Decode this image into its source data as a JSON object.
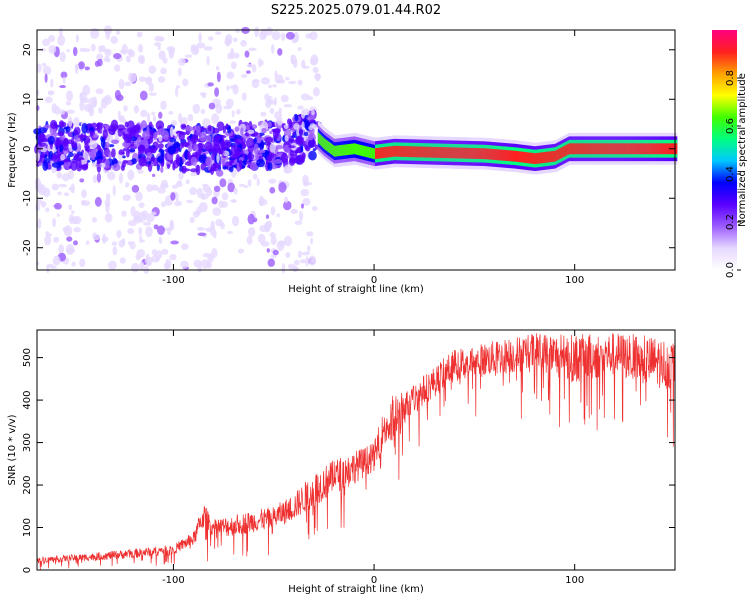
{
  "figure_title": "S225.2025.079.01.44.R02",
  "chart_data": [
    {
      "type": "heatmap",
      "xlabel": "Height of straight line (km)",
      "ylabel": "Frequency (Hz)",
      "xlim": [
        -168,
        150
      ],
      "ylim": [
        -24.5,
        24
      ],
      "xticks": [
        -100,
        0,
        100
      ],
      "yticks": [
        -20,
        -10,
        0,
        10,
        20
      ],
      "colorbar": {
        "label": "Normalized spectral amplitude",
        "range": [
          0,
          1
        ],
        "ticks": [
          0.0,
          0.2,
          0.4,
          0.6,
          0.8
        ],
        "tick_labels": [
          "0.0",
          "0.2",
          "0.4",
          "0.6",
          "0.8"
        ],
        "colormap": [
          "#ffffff",
          "#e6d8ff",
          "#9c5cff",
          "#5a00ff",
          "#0000ff",
          "#00c8ff",
          "#00ff80",
          "#40ff00",
          "#ffff00",
          "#ffa000",
          "#ff2020",
          "#ff0080"
        ]
      },
      "ridge_center_hz": [
        {
          "x": -168,
          "y": 0.5
        },
        {
          "x": -120,
          "y": 0.5
        },
        {
          "x": -80,
          "y": 0
        },
        {
          "x": -45,
          "y": 1
        },
        {
          "x": -30,
          "y": 3
        },
        {
          "x": -25,
          "y": 1
        },
        {
          "x": -20,
          "y": -0.5
        },
        {
          "x": -10,
          "y": 0
        },
        {
          "x": 0,
          "y": -1
        },
        {
          "x": 10,
          "y": -0.5
        },
        {
          "x": 55,
          "y": -1
        },
        {
          "x": 70,
          "y": -1.5
        },
        {
          "x": 80,
          "y": -2
        },
        {
          "x": 90,
          "y": -1.5
        },
        {
          "x": 97,
          "y": 0
        },
        {
          "x": 150,
          "y": 0
        }
      ]
    },
    {
      "type": "line",
      "xlabel": "Height of straight line (km)",
      "ylabel": "SNR (10 * v/v)",
      "xlim": [
        -168,
        150
      ],
      "ylim": [
        0,
        565
      ],
      "xticks": [
        -100,
        0,
        100
      ],
      "yticks": [
        0,
        100,
        200,
        300,
        400,
        500
      ],
      "color": "#ee3030",
      "envelope": [
        {
          "x": -168,
          "low": 0,
          "high": 30
        },
        {
          "x": -140,
          "low": 0,
          "high": 40
        },
        {
          "x": -120,
          "low": 0,
          "high": 50
        },
        {
          "x": -100,
          "low": 10,
          "high": 60
        },
        {
          "x": -90,
          "low": 15,
          "high": 90
        },
        {
          "x": -85,
          "low": 20,
          "high": 160
        },
        {
          "x": -80,
          "low": 15,
          "high": 120
        },
        {
          "x": -70,
          "low": 20,
          "high": 130
        },
        {
          "x": -60,
          "low": 25,
          "high": 140
        },
        {
          "x": -50,
          "low": 30,
          "high": 150
        },
        {
          "x": -40,
          "low": 40,
          "high": 180
        },
        {
          "x": -30,
          "low": 50,
          "high": 230
        },
        {
          "x": -20,
          "low": 80,
          "high": 260
        },
        {
          "x": -10,
          "low": 110,
          "high": 280
        },
        {
          "x": 0,
          "low": 150,
          "high": 300
        },
        {
          "x": 5,
          "low": 180,
          "high": 380
        },
        {
          "x": 10,
          "low": 90,
          "high": 420
        },
        {
          "x": 15,
          "low": 250,
          "high": 420
        },
        {
          "x": 25,
          "low": 300,
          "high": 460
        },
        {
          "x": 40,
          "low": 350,
          "high": 520
        },
        {
          "x": 60,
          "low": 360,
          "high": 540
        },
        {
          "x": 80,
          "low": 350,
          "high": 560
        },
        {
          "x": 100,
          "low": 300,
          "high": 555
        },
        {
          "x": 120,
          "low": 330,
          "high": 560
        },
        {
          "x": 140,
          "low": 280,
          "high": 550
        },
        {
          "x": 150,
          "low": 280,
          "high": 540
        }
      ]
    }
  ]
}
